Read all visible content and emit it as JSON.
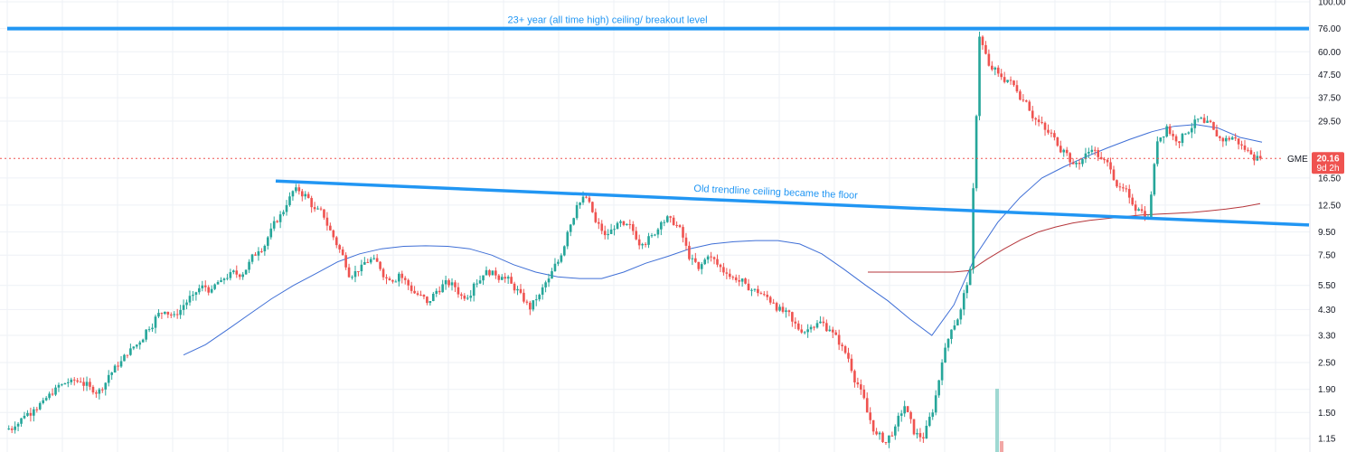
{
  "chart_data": {
    "type": "candlestick",
    "scale": "log",
    "grid": true,
    "y_ticks": [
      "100.00",
      "76.00",
      "60.00",
      "47.50",
      "37.50",
      "29.50",
      "16.50",
      "12.50",
      "9.50",
      "7.50",
      "5.50",
      "4.30",
      "3.30",
      "2.50",
      "1.90",
      "1.50",
      "1.15"
    ],
    "y_tick_values": [
      100,
      76,
      60,
      47.5,
      37.5,
      29.5,
      16.5,
      12.5,
      9.5,
      7.5,
      5.5,
      4.3,
      3.3,
      2.5,
      1.9,
      1.5,
      1.15
    ],
    "ylim": [
      1.02,
      100
    ],
    "symbol": "GME",
    "last_price": "20.16",
    "last_price_value": 20.16,
    "countdown": "9d 2h",
    "colors": {
      "up": "#26a69a",
      "down": "#ef5350",
      "trendline": "#2196f3",
      "ma_short": "#3f6fd6",
      "ma_long": "#b5363b",
      "price_badge": "#ef5350",
      "last_price_line": "#ef5350",
      "grid": "#eef1f6"
    },
    "annotations": [
      {
        "text": "23+ year (all time high) ceiling/ breakout level",
        "level": 76
      },
      {
        "text": "Old trendline ceiling became the floor",
        "from_level": 16.0,
        "to_level": 10.2
      }
    ],
    "weekly_closes": [
      1.3,
      1.45,
      1.55,
      1.7,
      1.8,
      2.0,
      2.1,
      2.05,
      1.95,
      1.9,
      2.2,
      2.4,
      2.7,
      3.0,
      3.5,
      4.0,
      4.2,
      4.1,
      4.5,
      5.0,
      5.5,
      5.3,
      5.8,
      6.3,
      6.0,
      7.0,
      7.8,
      9.0,
      10.5,
      12.5,
      15.0,
      14.0,
      12.0,
      11.0,
      9.0,
      7.5,
      6.0,
      6.8,
      7.2,
      6.5,
      5.8,
      6.2,
      5.5,
      5.0,
      4.6,
      5.2,
      5.8,
      5.4,
      4.8,
      5.6,
      6.1,
      6.4,
      6.0,
      5.6,
      5.1,
      4.3,
      5.0,
      5.9,
      7.0,
      9.5,
      12.5,
      13.5,
      10.5,
      9.2,
      9.8,
      10.2,
      9.6,
      8.4,
      9.2,
      10.5,
      11.0,
      10.0,
      7.2,
      6.5,
      7.4,
      6.8,
      6.2,
      5.8,
      5.6,
      5.3,
      5.0,
      4.6,
      4.2,
      3.8,
      3.4,
      3.6,
      3.8,
      3.5,
      3.0,
      2.6,
      2.0,
      1.5,
      1.2,
      1.1,
      1.3,
      1.6,
      1.2,
      1.15,
      1.5,
      2.5,
      3.5,
      4.3,
      6.5,
      70.0,
      52.0,
      48.0,
      45.0,
      40.0,
      36.0,
      30.0,
      27.0,
      25.0,
      22.0,
      19.0,
      20.0,
      22.0,
      20.0,
      18.0,
      15.0,
      13.5,
      12.0,
      11.0,
      24.0,
      28.0,
      24.0,
      26.0,
      30.0,
      29.0,
      27.0,
      24.0,
      25.0,
      23.0,
      21.0,
      20.16
    ],
    "ma_short_values": [
      2.7,
      3.0,
      3.5,
      4.1,
      4.8,
      5.5,
      6.2,
      7.0,
      7.6,
      8.0,
      8.2,
      8.25,
      8.2,
      8.0,
      7.5,
      6.8,
      6.3,
      6.0,
      5.9,
      5.9,
      6.3,
      6.9,
      7.4,
      8.0,
      8.4,
      8.6,
      8.7,
      8.7,
      8.4,
      7.6,
      6.5,
      5.5,
      4.7,
      3.9,
      3.3,
      4.5,
      7.5,
      10.5,
      13.5,
      16.5,
      18.5,
      20.5,
      22.5,
      24.5,
      26.5,
      28.0,
      28.5,
      27.5,
      25.0,
      23.8
    ],
    "ma_long_values": [
      6.3,
      6.3,
      6.3,
      6.3,
      6.3,
      6.3,
      6.4,
      7.2,
      8.0,
      8.8,
      9.5,
      10.0,
      10.4,
      10.7,
      10.9,
      11.1,
      11.3,
      11.4,
      11.5,
      11.6,
      11.8,
      12.0,
      12.3,
      12.7
    ]
  }
}
